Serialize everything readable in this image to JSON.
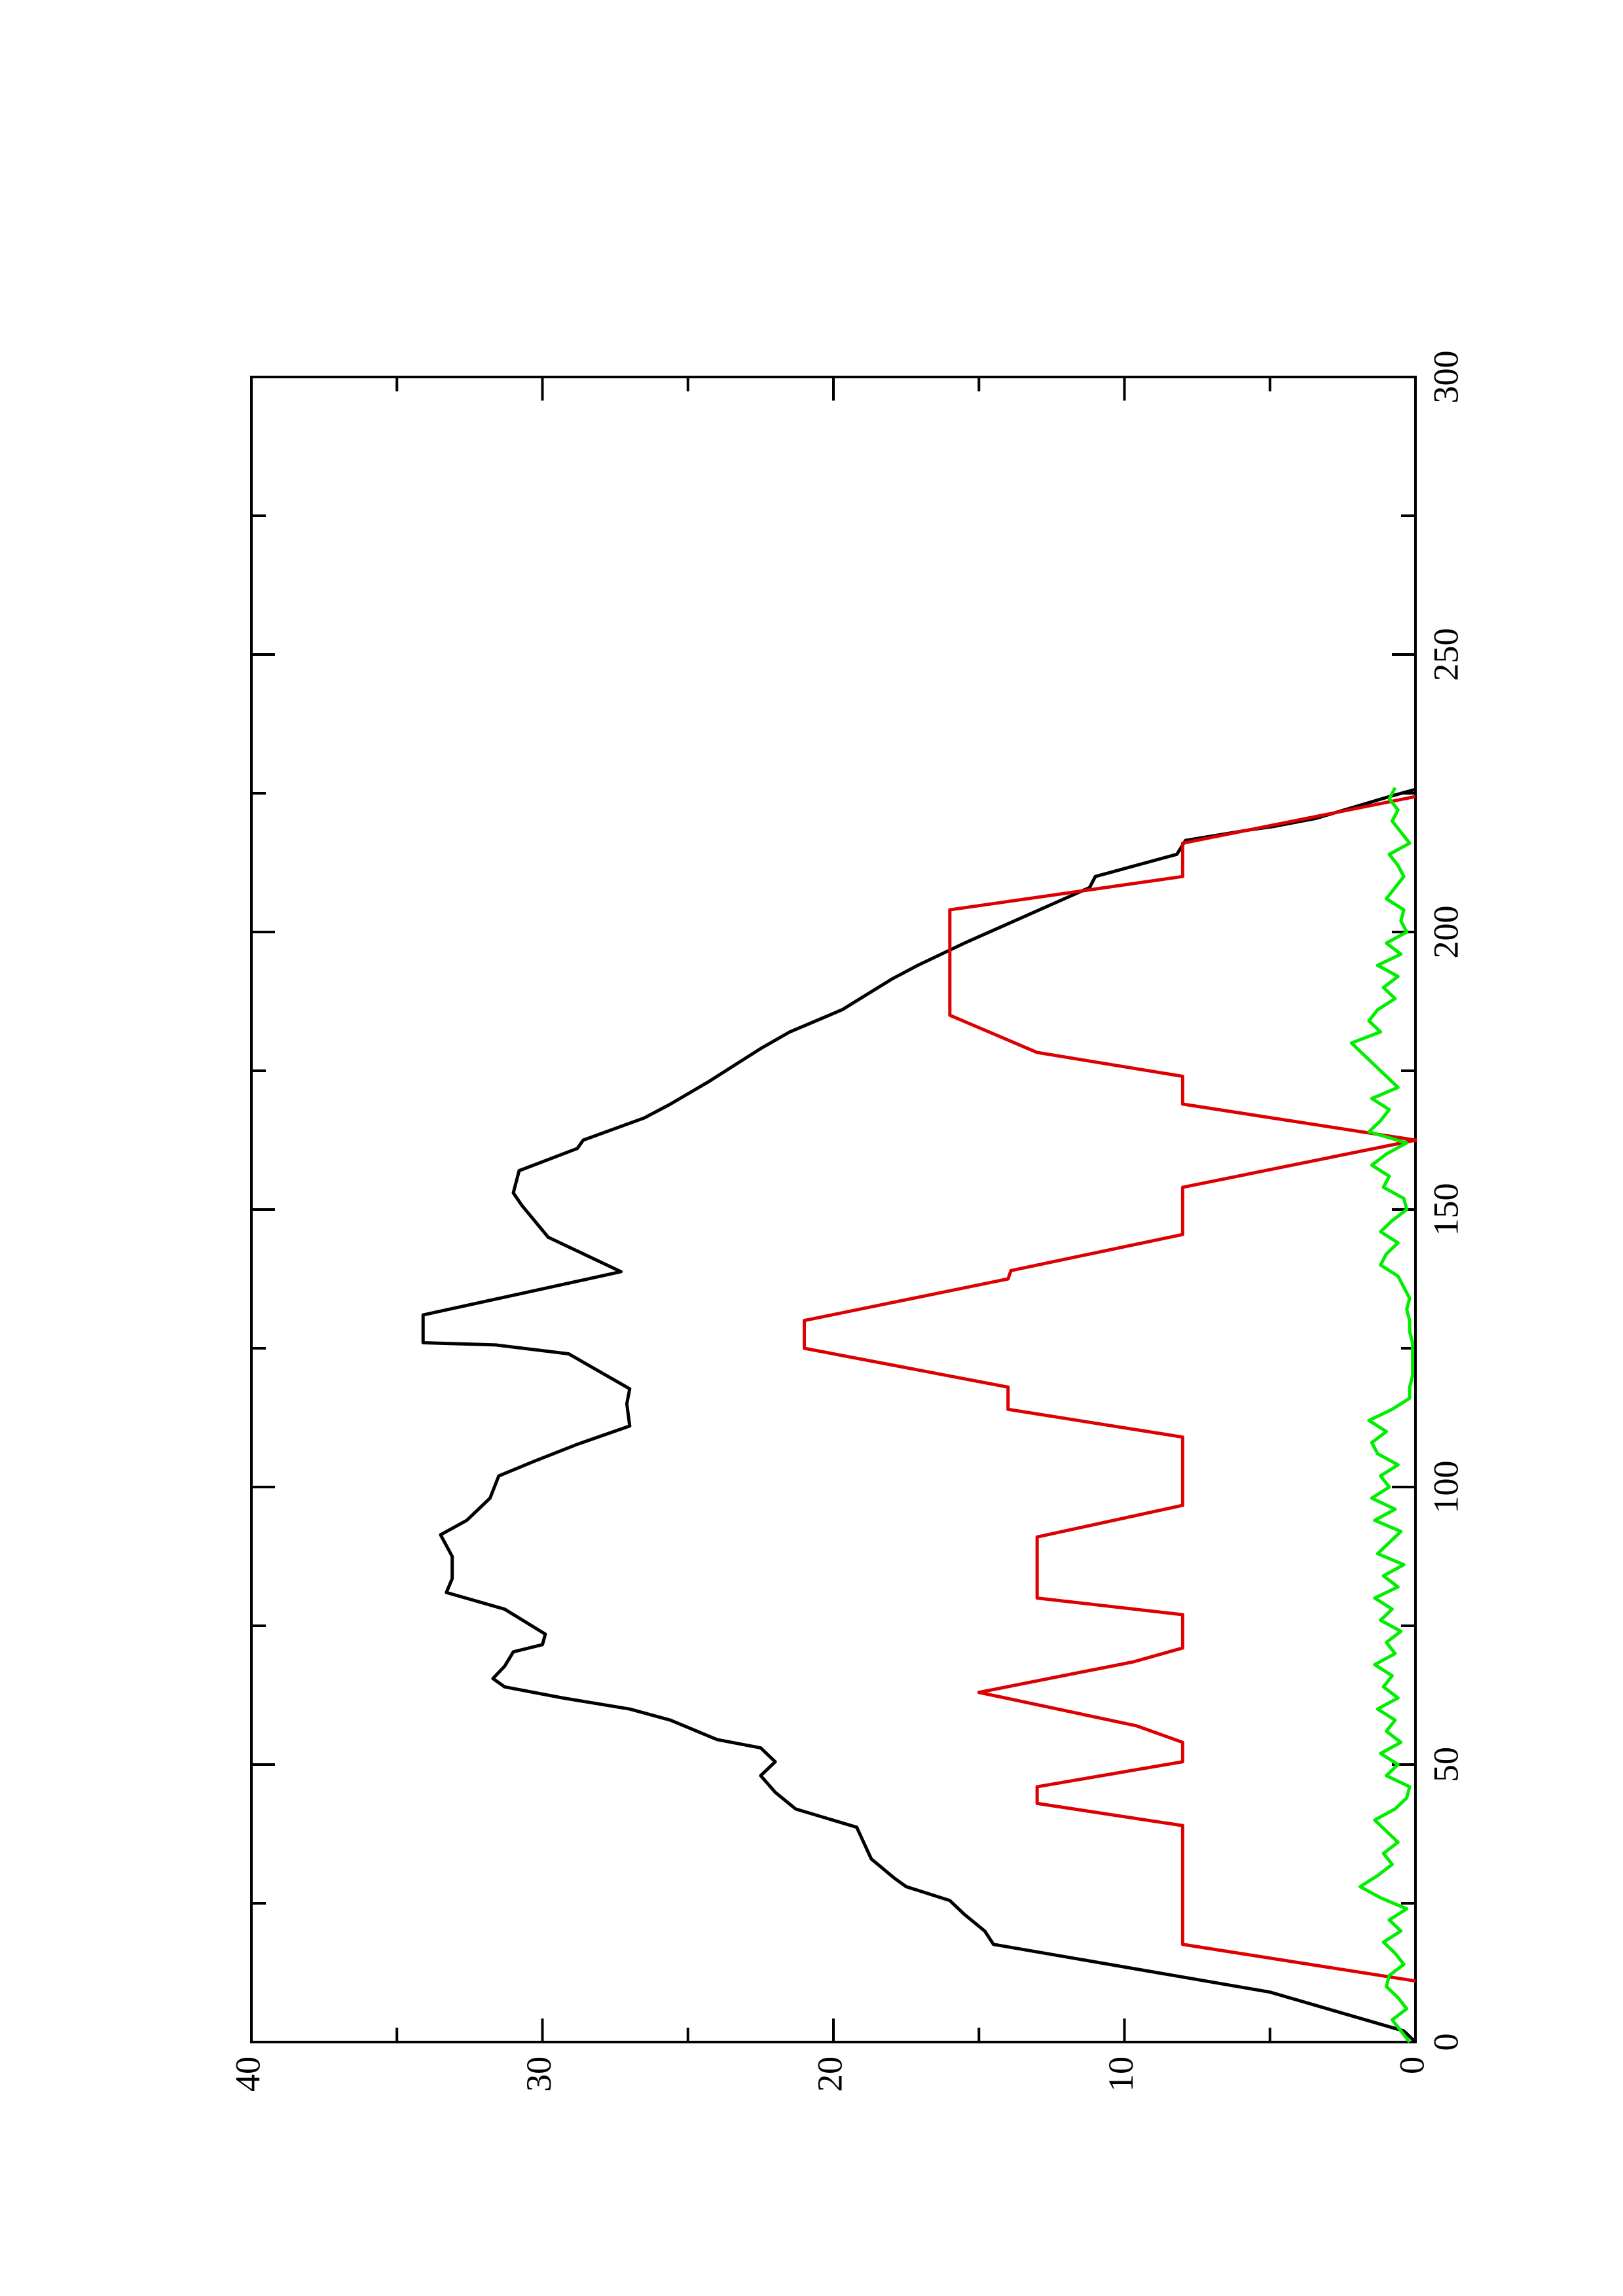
{
  "chart_data": {
    "type": "line",
    "xlim": [
      0,
      300
    ],
    "xticks": [
      0,
      50,
      100,
      150,
      200,
      250,
      300
    ],
    "xminor_ticks": [
      25,
      75,
      125,
      175,
      225,
      275
    ],
    "ylim": [
      0,
      40
    ],
    "yticks": [
      0,
      10,
      20,
      30,
      40
    ],
    "yminor_ticks": [
      5,
      15,
      25,
      35
    ],
    "series": [
      {
        "color": "#000000",
        "x": [
          0,
          2,
          9,
          17.6,
          20,
          23,
          25.5,
          28,
          29.5,
          33,
          38.7,
          42,
          45,
          48,
          50.5,
          53,
          54.5,
          58,
          60,
          62,
          64,
          65.5,
          67.7,
          70.3,
          71.6,
          73.5,
          78,
          81,
          83.5,
          87.5,
          91.4,
          94,
          98,
          102,
          104.6,
          107.7,
          111,
          115,
          117.7,
          124,
          125.6,
          126,
          131,
          138.8,
          145,
          150.7,
          153,
          157,
          161,
          162.5,
          166.5,
          169,
          173,
          174,
          179,
          182,
          186,
          191.5,
          194,
          198,
          208,
          210,
          214,
          216.5,
          218.4,
          219,
          220.5,
          224.4,
          225.7
        ],
        "values": [
          0,
          0.4,
          5,
          14.5,
          14.8,
          15.5,
          16,
          17.5,
          17.9,
          18.7,
          19.2,
          21.3,
          22,
          22.5,
          22,
          22.5,
          24,
          25.6,
          27,
          29.3,
          31.3,
          31.7,
          31.3,
          31,
          30,
          29.9,
          31.3,
          33.3,
          33.1,
          33.1,
          33.5,
          32.6,
          31.8,
          31.5,
          30.3,
          28.8,
          27,
          27.1,
          27,
          29.1,
          31.6,
          34.1,
          34.1,
          27.3,
          29.8,
          30.7,
          31,
          30.8,
          28.8,
          28.6,
          26.5,
          25.6,
          24.3,
          24,
          22.5,
          21.5,
          19.7,
          18,
          17.1,
          15.5,
          11.2,
          11,
          8.2,
          7.9,
          5.7,
          4.9,
          3.4,
          0.9,
          0
        ]
      },
      {
        "color": "#dd0000",
        "x": [
          11,
          17.6,
          39,
          43,
          46,
          50.5,
          54,
          57,
          63,
          68.5,
          71,
          77,
          80,
          91,
          96.7,
          109,
          114,
          118,
          125,
          130,
          137.5,
          139,
          145.5,
          154,
          162.5,
          169,
          174,
          178.3,
          185,
          204,
          210,
          216,
          224.4
        ],
        "values": [
          0,
          8,
          8,
          13,
          13,
          8,
          8,
          9.6,
          15,
          9.7,
          8,
          8,
          13,
          13,
          8,
          8,
          14,
          14,
          21,
          21,
          14,
          13.9,
          8,
          8,
          0,
          8,
          8,
          13,
          16,
          16,
          8,
          8,
          0
        ]
      },
      {
        "color": "#00ee00",
        "x": [
          0,
          2,
          4,
          6,
          8,
          10,
          12,
          14,
          16,
          18,
          20,
          22,
          24,
          26,
          28,
          30,
          32,
          34,
          36,
          38,
          40,
          42,
          44,
          46,
          48,
          50,
          52,
          54,
          56,
          58,
          60,
          62,
          64,
          66,
          68,
          70,
          72,
          74,
          76,
          78,
          80,
          82,
          84,
          86,
          88,
          90,
          92,
          94,
          96,
          98,
          100,
          102,
          104,
          106,
          108,
          110,
          112,
          114,
          116,
          118,
          120,
          122,
          124,
          126,
          128,
          130,
          132,
          134,
          136,
          138,
          140,
          142,
          144,
          146,
          148,
          150,
          152,
          154,
          156,
          158,
          160,
          162,
          164,
          166,
          168,
          170,
          172,
          174,
          176,
          178,
          180,
          182,
          184,
          186,
          188,
          190,
          192,
          194,
          196,
          198,
          200,
          202,
          204,
          206,
          208,
          210,
          212,
          214,
          216,
          218,
          220,
          222,
          224,
          226
        ],
        "values": [
          0.2,
          0.5,
          0.8,
          0.3,
          0.6,
          1.0,
          0.9,
          0.4,
          0.7,
          1.1,
          0.5,
          0.9,
          0.3,
          1.2,
          1.9,
          1.3,
          0.8,
          1.1,
          0.6,
          1.0,
          1.4,
          0.7,
          0.3,
          0.2,
          1.0,
          0.6,
          1.2,
          0.5,
          1.0,
          0.7,
          1.3,
          0.6,
          1.1,
          0.8,
          1.4,
          0.7,
          1.0,
          0.5,
          1.2,
          0.8,
          1.4,
          0.6,
          1.1,
          0.4,
          1.3,
          0.9,
          0.5,
          1.4,
          0.7,
          1.5,
          0.9,
          1.2,
          0.6,
          1.3,
          1.5,
          1.0,
          1.6,
          0.8,
          0.2,
          0.2,
          0.1,
          0.1,
          0.1,
          0.1,
          0.2,
          0.2,
          0.3,
          0.2,
          0.4,
          0.6,
          1.2,
          1.0,
          0.6,
          1.2,
          0.8,
          0.3,
          0.4,
          1.1,
          0.9,
          1.5,
          1.0,
          0.3,
          1.6,
          1.2,
          0.9,
          1.5,
          0.6,
          1.0,
          1.4,
          1.8,
          2.2,
          1.2,
          1.6,
          1.3,
          0.7,
          1.1,
          0.6,
          1.3,
          0.5,
          1.0,
          0.3,
          0.5,
          0.4,
          1.0,
          0.7,
          0.4,
          0.6,
          0.9,
          0.2,
          0.5,
          0.8,
          0.6,
          0.9,
          0.7
        ]
      }
    ]
  }
}
